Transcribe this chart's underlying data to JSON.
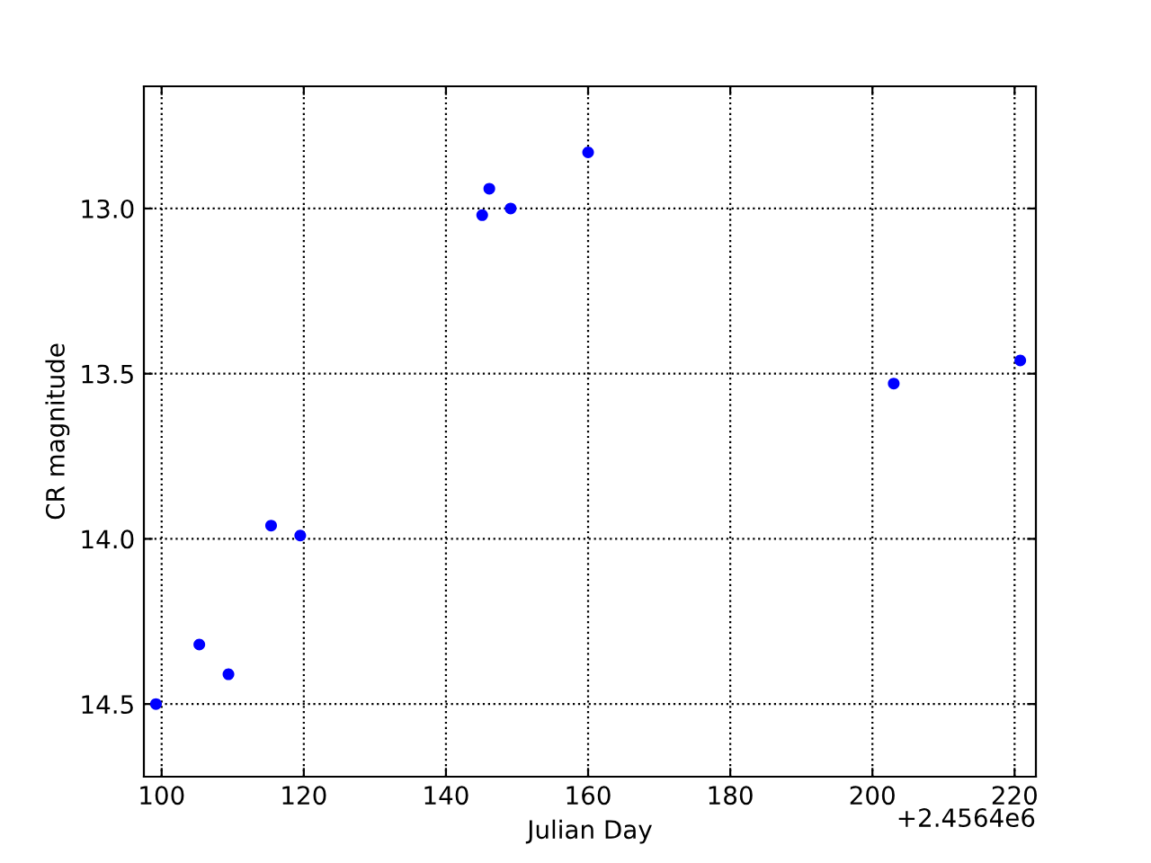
{
  "chart_data": {
    "type": "scatter",
    "xlabel": "Julian Day",
    "ylabel": "CR magnitude",
    "x": [
      99.2,
      105.3,
      109.4,
      115.4,
      119.5,
      145.1,
      146.1,
      149.1,
      160.0,
      203.0,
      220.8
    ],
    "series": [
      {
        "color": "#0000ff",
        "values": [
          14.5,
          14.32,
          14.41,
          13.96,
          13.99,
          13.02,
          12.94,
          13.0,
          12.83,
          13.53,
          13.46
        ]
      }
    ],
    "marker": "circle",
    "xlim": [
      97.5,
      223
    ],
    "xticks": [
      100,
      120,
      140,
      160,
      180,
      200,
      220
    ],
    "ylim": [
      14.72,
      12.63
    ],
    "yticks": [
      {
        "value": 13.0,
        "label": "13.0"
      },
      {
        "value": 13.5,
        "label": "13.5"
      },
      {
        "value": 14.0,
        "label": "14.0"
      },
      {
        "value": 14.5,
        "label": "14.5"
      }
    ],
    "grid": true,
    "annotations": [
      "+2.4564e6"
    ]
  }
}
